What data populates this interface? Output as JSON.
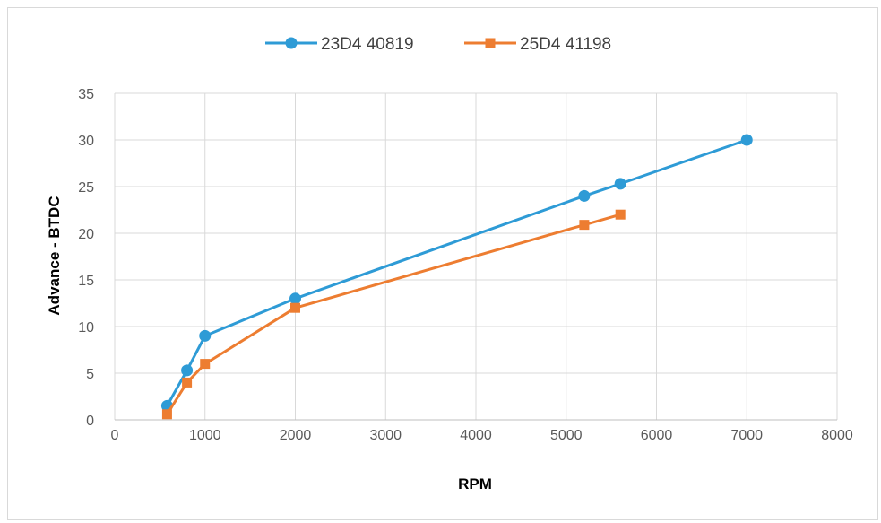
{
  "chart_data": {
    "type": "scatter",
    "title": "",
    "xlabel": "RPM",
    "ylabel": "Advance - BTDC",
    "xlim": [
      0,
      8000
    ],
    "ylim": [
      0,
      35
    ],
    "x_ticks": [
      "0",
      "1000",
      "2000",
      "3000",
      "4000",
      "5000",
      "6000",
      "7000",
      "8000"
    ],
    "y_ticks": [
      "0",
      "5",
      "10",
      "15",
      "20",
      "25",
      "30",
      "35"
    ],
    "grid": true,
    "legend_position": "top",
    "series": [
      {
        "name": "23D4 40819",
        "color": "#2e9bd6",
        "marker": "circle",
        "points": [
          {
            "x": 580,
            "y": 1.5
          },
          {
            "x": 800,
            "y": 5.3
          },
          {
            "x": 1000,
            "y": 9
          },
          {
            "x": 2000,
            "y": 13
          },
          {
            "x": 5200,
            "y": 24
          },
          {
            "x": 5600,
            "y": 25.3
          },
          {
            "x": 7000,
            "y": 30
          }
        ]
      },
      {
        "name": "25D4 41198",
        "color": "#ed7d31",
        "marker": "square",
        "points": [
          {
            "x": 580,
            "y": 0.6
          },
          {
            "x": 800,
            "y": 4
          },
          {
            "x": 1000,
            "y": 6
          },
          {
            "x": 2000,
            "y": 12
          },
          {
            "x": 5200,
            "y": 20.9
          },
          {
            "x": 5600,
            "y": 22
          }
        ]
      }
    ]
  }
}
